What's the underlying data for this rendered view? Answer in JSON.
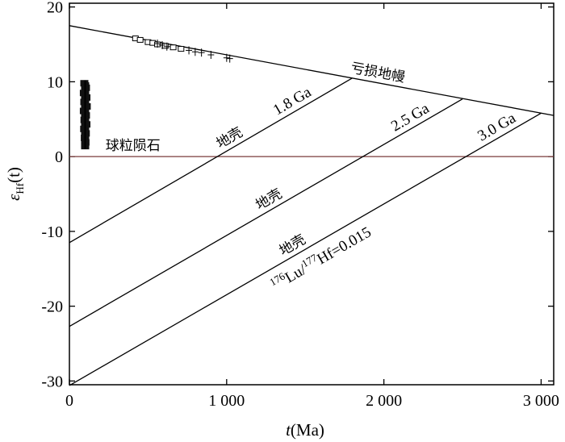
{
  "chart_data": {
    "type": "line",
    "xlabel_var": "t",
    "xlabel_unit": "(Ma)",
    "ylabel_var": "ε",
    "ylabel_sub": "Hf",
    "ylabel_arg": "(t)",
    "xlim": [
      0,
      3080
    ],
    "ylim": [
      -30.5,
      20.5
    ],
    "x_ticks": [
      0,
      1000,
      2000,
      3000
    ],
    "x_tick_labels": [
      "0",
      "1 000",
      "2 000",
      "3 000"
    ],
    "y_ticks": [
      20,
      10,
      0,
      -10,
      -20,
      -30
    ],
    "y_tick_labels": [
      "20",
      "10",
      "0",
      "-10",
      "-20",
      "-30"
    ],
    "chondrite_line": {
      "label": "球粒陨石",
      "y": 0,
      "color": "#7a3b3b"
    },
    "depleted_mantle": {
      "label": "亏损地幔",
      "points": [
        [
          0,
          17.5
        ],
        [
          3080,
          5.5
        ]
      ]
    },
    "crust_lines": [
      {
        "age_label": "1.8 Ga",
        "crust_label": "地壳",
        "points": [
          [
            0,
            -11.5
          ],
          [
            1800,
            10.5
          ]
        ]
      },
      {
        "age_label": "2.5 Ga",
        "crust_label": "地壳",
        "points": [
          [
            0,
            -22.7
          ],
          [
            2500,
            7.7
          ]
        ]
      },
      {
        "age_label": "3.0 Ga",
        "crust_label": "地壳",
        "points": [
          [
            0,
            -30.6
          ],
          [
            3000,
            5.8
          ]
        ]
      }
    ],
    "ratio_label": {
      "pre1": "176",
      "mid1": "Lu/",
      "pre2": "177",
      "mid2": "Hf=0.015"
    },
    "samples_left": [
      {
        "x": 100,
        "y": 9.5
      },
      {
        "x": 100,
        "y": 8.8
      },
      {
        "x": 100,
        "y": 8.2
      },
      {
        "x": 100,
        "y": 7.6
      },
      {
        "x": 100,
        "y": 7.0
      },
      {
        "x": 100,
        "y": 6.4
      },
      {
        "x": 100,
        "y": 5.8
      },
      {
        "x": 100,
        "y": 5.2
      },
      {
        "x": 100,
        "y": 4.6
      },
      {
        "x": 100,
        "y": 4.0
      },
      {
        "x": 100,
        "y": 3.4
      },
      {
        "x": 100,
        "y": 2.8
      },
      {
        "x": 100,
        "y": 2.2
      },
      {
        "x": 100,
        "y": 1.6
      },
      {
        "x": 95,
        "y": 9.8
      },
      {
        "x": 105,
        "y": 9.2
      },
      {
        "x": 92,
        "y": 8.5
      },
      {
        "x": 108,
        "y": 7.9
      },
      {
        "x": 95,
        "y": 7.3
      },
      {
        "x": 110,
        "y": 6.7
      },
      {
        "x": 92,
        "y": 6.1
      },
      {
        "x": 105,
        "y": 5.5
      },
      {
        "x": 96,
        "y": 4.9
      },
      {
        "x": 108,
        "y": 4.3
      },
      {
        "x": 94,
        "y": 3.7
      },
      {
        "x": 104,
        "y": 3.1
      },
      {
        "x": 98,
        "y": 2.5
      },
      {
        "x": 102,
        "y": 1.9
      },
      {
        "x": 100,
        "y": 1.4
      }
    ],
    "samples_square": [
      {
        "x": 420,
        "y": 15.8
      },
      {
        "x": 450,
        "y": 15.6
      },
      {
        "x": 500,
        "y": 15.3
      },
      {
        "x": 530,
        "y": 15.2
      },
      {
        "x": 560,
        "y": 15.0
      },
      {
        "x": 610,
        "y": 14.8
      },
      {
        "x": 660,
        "y": 14.6
      },
      {
        "x": 710,
        "y": 14.4
      }
    ],
    "samples_plus": [
      {
        "x": 560,
        "y": 15.1
      },
      {
        "x": 590,
        "y": 14.9
      },
      {
        "x": 620,
        "y": 14.7
      },
      {
        "x": 760,
        "y": 14.2
      },
      {
        "x": 800,
        "y": 14.0
      },
      {
        "x": 840,
        "y": 13.9
      },
      {
        "x": 900,
        "y": 13.6
      },
      {
        "x": 1000,
        "y": 13.2
      },
      {
        "x": 1020,
        "y": 13.1
      }
    ]
  }
}
